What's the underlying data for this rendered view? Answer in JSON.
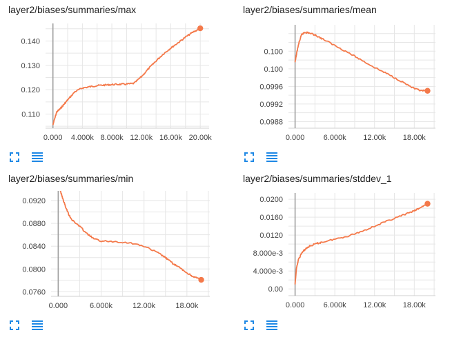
{
  "accent_color": "#f4794a",
  "icons": {
    "fit": "fit-domain-icon",
    "data": "data-table-icon"
  },
  "chart_data": [
    {
      "type": "line",
      "title": "layer2/biases/summaries/max",
      "xlim": [
        -1000,
        21200
      ],
      "ylim": [
        0.1042,
        0.1472
      ],
      "x_ticks": [
        0,
        4000,
        8000,
        12000,
        16000,
        20000
      ],
      "x_tick_labels": [
        "0.000",
        "4.000k",
        "8.000k",
        "12.00k",
        "16.00k",
        "20.00k"
      ],
      "y_ticks": [
        0.11,
        0.12,
        0.13,
        0.14
      ],
      "y_tick_labels": [
        "0.110",
        "0.120",
        "0.130",
        "0.140"
      ],
      "grid": true,
      "series": [
        {
          "color": "#f4794a",
          "x": [
            0,
            500,
            1000,
            1500,
            2000,
            3000,
            4000,
            5000,
            6000,
            7000,
            8000,
            9000,
            10000,
            11000,
            12000,
            13000,
            14000,
            15000,
            16000,
            17000,
            18000,
            19000,
            20000
          ],
          "y": [
            0.1055,
            0.1108,
            0.1122,
            0.114,
            0.1158,
            0.1192,
            0.1207,
            0.1212,
            0.1217,
            0.1219,
            0.1221,
            0.1222,
            0.1223,
            0.1226,
            0.1253,
            0.1287,
            0.1318,
            0.1347,
            0.1371,
            0.1393,
            0.1416,
            0.1436,
            0.1452
          ]
        }
      ]
    },
    {
      "type": "line",
      "title": "layer2/biases/summaries/mean",
      "xlim": [
        -1000,
        21200
      ],
      "ylim": [
        0.09865,
        0.101
      ],
      "x_ticks": [
        0,
        6000,
        12000,
        18000
      ],
      "x_tick_labels": [
        "0.000",
        "6.000k",
        "12.00k",
        "18.00k"
      ],
      "y_ticks": [
        0.0988,
        0.0992,
        0.0996,
        0.1,
        0.1004
      ],
      "y_tick_labels": [
        "0.0988",
        "0.0992",
        "0.0996",
        "0.100",
        "0.100"
      ],
      "grid": true,
      "series": [
        {
          "color": "#f4794a",
          "x": [
            0,
            300,
            600,
            1000,
            1500,
            2000,
            3000,
            4000,
            6000,
            8000,
            10000,
            12000,
            14000,
            16000,
            18000,
            19000,
            20000
          ],
          "y": [
            0.10015,
            0.1004,
            0.1006,
            0.10078,
            0.10083,
            0.10082,
            0.10077,
            0.10069,
            0.10053,
            0.10037,
            0.1002,
            0.10003,
            0.09988,
            0.09972,
            0.09955,
            0.0995,
            0.0995
          ]
        }
      ]
    },
    {
      "type": "line",
      "title": "layer2/biases/summaries/min",
      "xlim": [
        -1000,
        21200
      ],
      "ylim": [
        0.0752,
        0.0937
      ],
      "x_ticks": [
        0,
        6000,
        12000,
        18000
      ],
      "x_tick_labels": [
        "0.000",
        "6.000k",
        "12.00k",
        "18.00k"
      ],
      "y_ticks": [
        0.076,
        0.08,
        0.084,
        0.088,
        0.092
      ],
      "y_tick_labels": [
        "0.0760",
        "0.0800",
        "0.0840",
        "0.0880",
        "0.0920"
      ],
      "grid": true,
      "series": [
        {
          "color": "#f4794a",
          "x": [
            300,
            600,
            1000,
            1500,
            2000,
            3000,
            4000,
            5000,
            6000,
            8000,
            10000,
            12000,
            14000,
            15000,
            16000,
            17000,
            18000,
            19000,
            20000
          ],
          "y": [
            0.0937,
            0.0925,
            0.091,
            0.0895,
            0.0885,
            0.0875,
            0.0862,
            0.0853,
            0.0849,
            0.0848,
            0.0846,
            0.084,
            0.0828,
            0.082,
            0.081,
            0.0802,
            0.0793,
            0.0786,
            0.0781
          ]
        }
      ]
    },
    {
      "type": "line",
      "title": "layer2/biases/summaries/stddev_1",
      "xlim": [
        -1000,
        21200
      ],
      "ylim": [
        -0.0015,
        0.0214
      ],
      "x_ticks": [
        0,
        6000,
        12000,
        18000
      ],
      "x_tick_labels": [
        "0.000",
        "6.000k",
        "12.00k",
        "18.00k"
      ],
      "y_ticks": [
        0,
        0.004,
        0.008,
        0.012,
        0.016,
        0.02
      ],
      "y_tick_labels": [
        "0.00",
        "4.000e-3",
        "8.000e-3",
        "0.0120",
        "0.0160",
        "0.0200"
      ],
      "grid": true,
      "series": [
        {
          "color": "#f4794a",
          "x": [
            0,
            200,
            500,
            1000,
            1500,
            2000,
            3000,
            4000,
            6000,
            8000,
            10000,
            12000,
            14000,
            16000,
            18000,
            19000,
            20000
          ],
          "y": [
            0.001,
            0.0045,
            0.0065,
            0.008,
            0.0088,
            0.0094,
            0.01,
            0.0104,
            0.0111,
            0.0118,
            0.0128,
            0.014,
            0.0152,
            0.0163,
            0.0174,
            0.0182,
            0.019
          ]
        }
      ]
    }
  ]
}
